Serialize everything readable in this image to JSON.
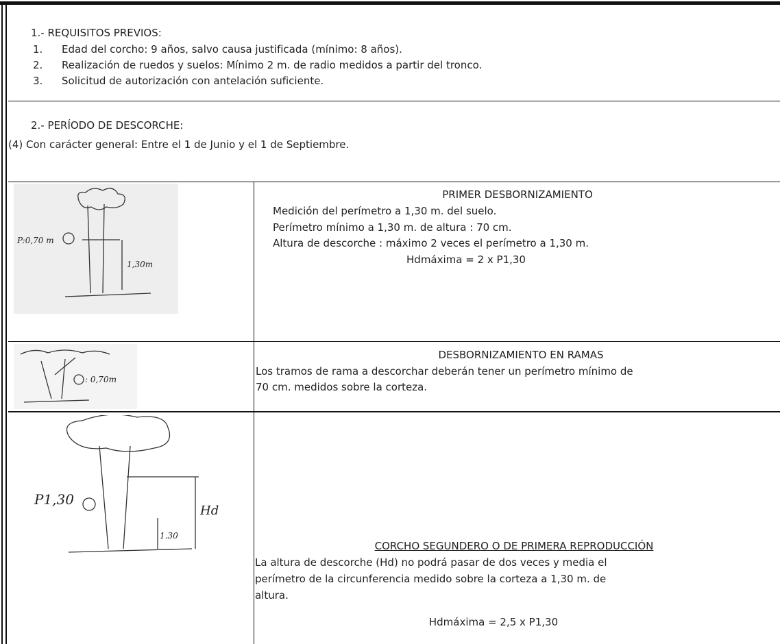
{
  "section1": {
    "heading": "1.- REQUISITOS PREVIOS:",
    "items": [
      {
        "number": "1.",
        "text": "Edad del corcho: 9 años, salvo causa justificada (mínimo: 8 años)."
      },
      {
        "number": "2.",
        "text": "Realización de ruedos y suelos: Mínimo 2 m. de radio medidos a partir del tronco."
      },
      {
        "number": "3.",
        "text": "Solicitud de autorización con antelación suficiente."
      }
    ]
  },
  "section2": {
    "heading": "2.- PERÍODO DE DESCORCHE:",
    "note": "(4) Con carácter general: Entre el 1 de Junio y el 1 de Septiembre."
  },
  "rows": [
    {
      "sketch_labels": [
        "P:0,70 m",
        "1,30m"
      ],
      "title": "PRIMER DESBORNIZAMIENTO",
      "lines": [
        "Medición del perímetro a 1,30 m. del suelo.",
        "Perímetro mínimo a 1,30 m. de altura : 70 cm.",
        "Altura de descorche : máximo 2 veces el perímetro a 1,30 m."
      ],
      "formula": "Hdmáxima = 2 x P1,30"
    },
    {
      "sketch_labels": [
        ": 0,70m"
      ],
      "title": "DESBORNIZAMIENTO EN RAMAS",
      "lines": [
        "Los tramos de rama a descorchar deberán tener un perímetro mínimo de",
        "70 cm. medidos sobre la corteza."
      ]
    },
    {
      "sketch_labels": [
        "P1,30",
        "Hd",
        "1.30"
      ],
      "title": "CORCHO SEGUNDERO O DE PRIMERA REPRODUCCIÓN",
      "lines": [
        "La altura de descorche (Hd) no podrá pasar de dos veces y media el",
        "perímetro de la circunferencia medido sobre la corteza a 1,30 m. de",
        "altura."
      ],
      "formula": "Hdmáxima = 2,5 x P1,30"
    }
  ]
}
